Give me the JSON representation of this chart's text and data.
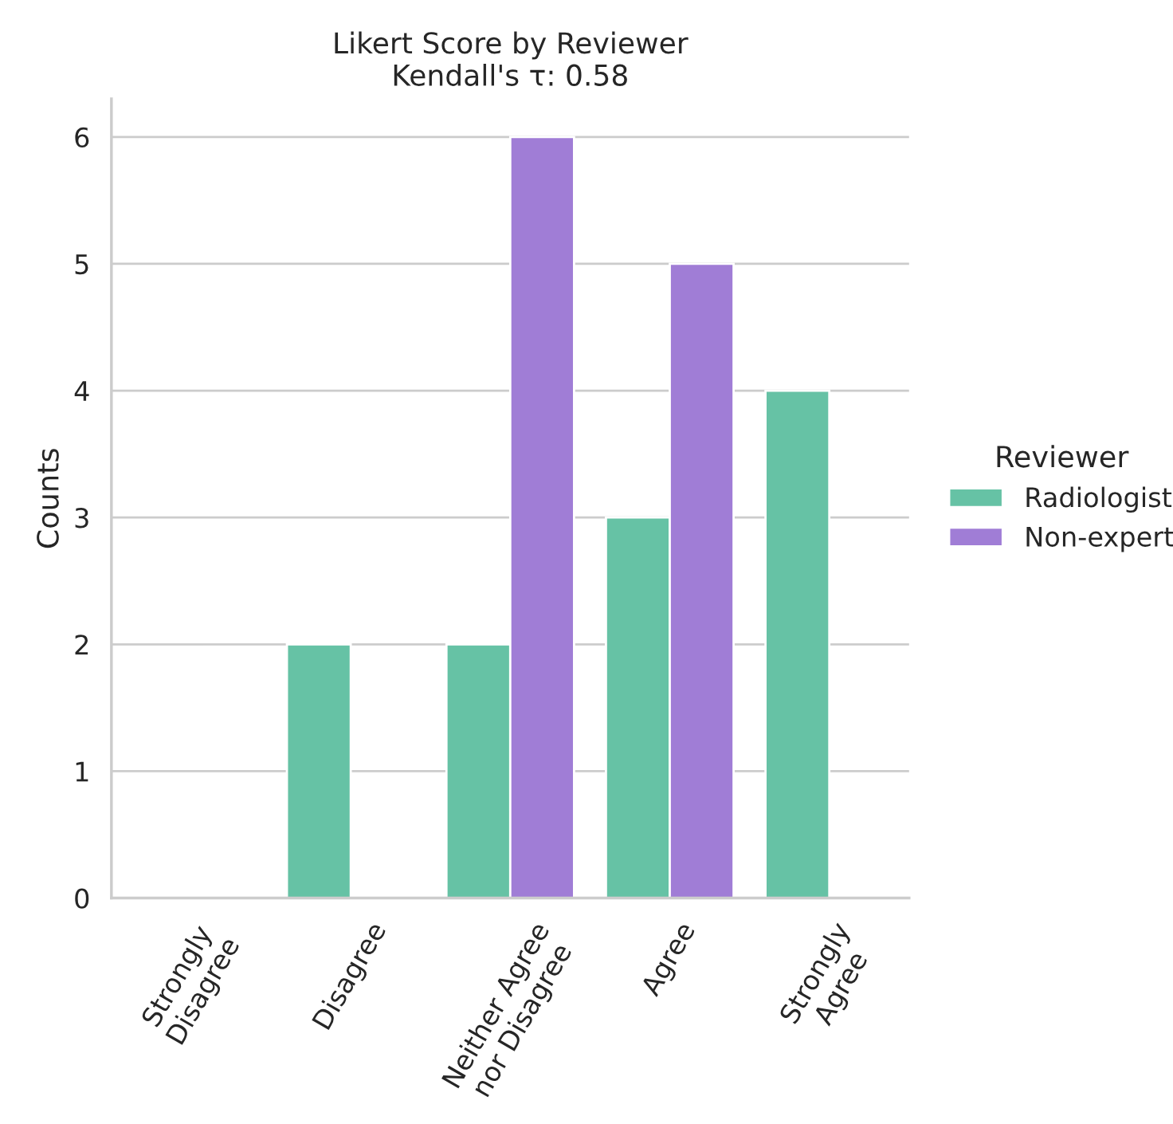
{
  "chart_data": {
    "type": "bar",
    "title": "Likert Score by Reviewer\nKendall's τ: 0.58",
    "ylabel": "Counts",
    "categories": [
      "Strongly\nDisagree",
      "Disagree",
      "Neither Agree\nnor Disagree",
      "Agree",
      "Strongly\nAgree"
    ],
    "series": [
      {
        "name": "Radiologist",
        "color": "#66c2a5",
        "values": [
          0,
          2,
          2,
          3,
          4
        ]
      },
      {
        "name": "Non-expert",
        "color": "#a07dd6",
        "values": [
          0,
          0,
          6,
          5,
          0
        ]
      }
    ],
    "ylim": [
      0,
      6.3
    ],
    "yticks": [
      0,
      1,
      2,
      3,
      4,
      5,
      6
    ],
    "grid": "y",
    "legend": "right",
    "legend_title": "Reviewer"
  }
}
